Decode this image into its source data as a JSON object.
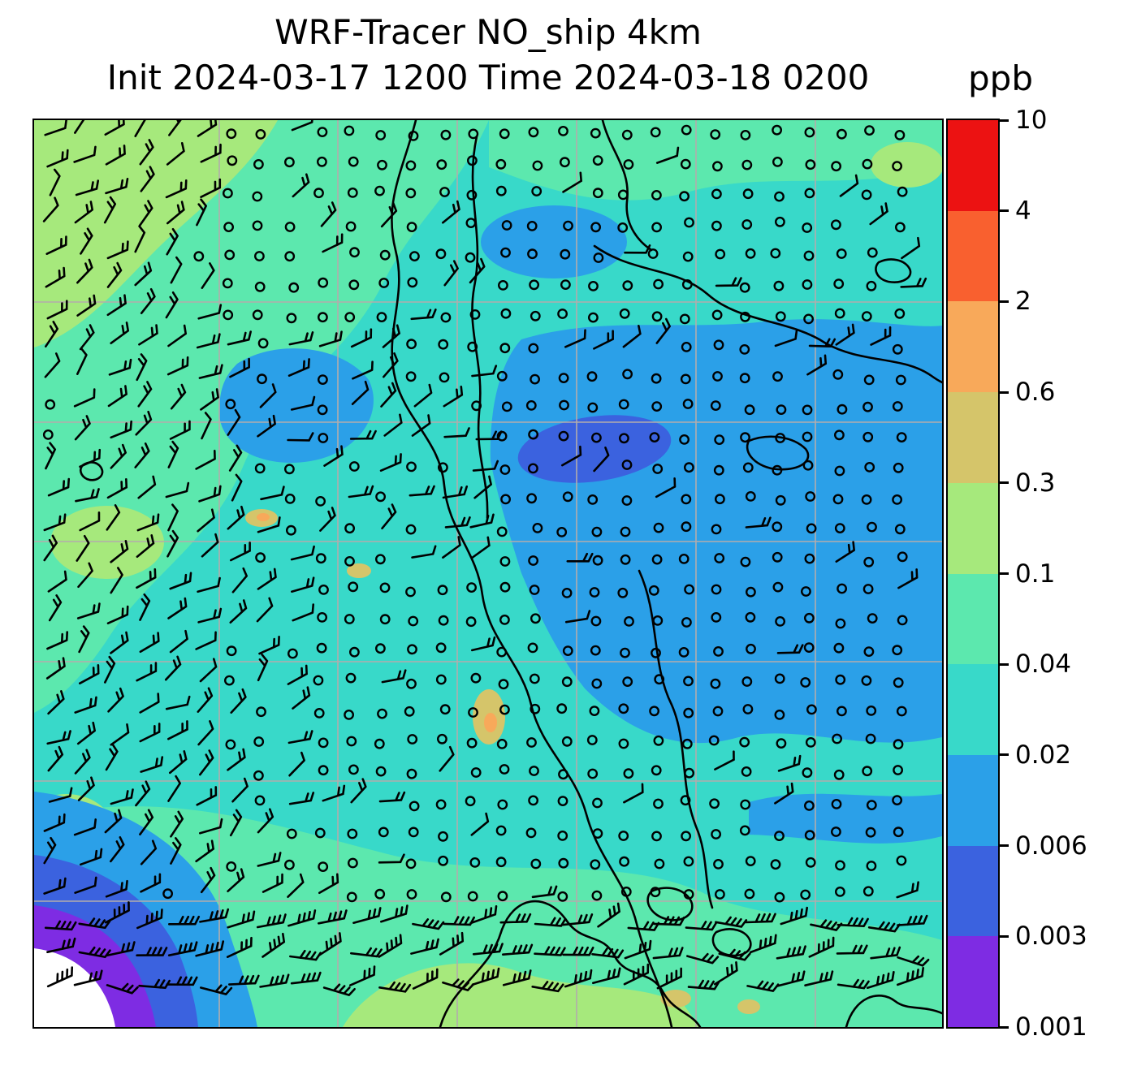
{
  "figure": {
    "title": "WRF-Tracer NO_ship 4km",
    "subtitle": "Init 2024-03-17 1200 Time 2024-03-18 0200",
    "units_label": "ppb"
  },
  "style": {
    "background": "#ffffff",
    "grid_color": "#b3acac",
    "coast_color": "#000000",
    "barb_color": "#000000"
  },
  "chart_data": {
    "type": "heatmap",
    "title": "WRF-Tracer NO_ship 4km",
    "variable": "NO_ship tracer concentration",
    "model": "WRF-Tracer",
    "resolution": "4km",
    "init_time": "2024-03-17 1200",
    "valid_time": "2024-03-18 0200",
    "units": "ppb",
    "colorbar": {
      "orientation": "vertical",
      "position": "right",
      "scale": "discrete non-linear (log-like)",
      "under_color": "#ffffff",
      "ticks": [
        0.001,
        0.003,
        0.006,
        0.02,
        0.04,
        0.1,
        0.3,
        0.6,
        2,
        4,
        10
      ],
      "tick_labels": [
        "0.001",
        "0.003",
        "0.006",
        "0.02",
        "0.04",
        "0.1",
        "0.3",
        "0.6",
        "2",
        "4",
        "10"
      ],
      "colors": [
        "#7e2ce3",
        "#3b62df",
        "#2ba0e8",
        "#38d9c9",
        "#5ce8ae",
        "#a6e97c",
        "#d5c56a",
        "#f8a95a",
        "#f9602f",
        "#ec1212"
      ]
    },
    "overlays": [
      {
        "name": "wind-barbs",
        "style": "black wind barbs; calm stations drawn as small open circles"
      },
      {
        "name": "coastlines",
        "style": "black solid lines"
      },
      {
        "name": "lat-lon-grid",
        "style": "gray straight grid lines"
      }
    ],
    "field_summary": "Field mostly 0.02-0.1 ppb (teal/green); 0.006-0.02 ppb (blue) over open water center-right with a 0.003-0.006 ppb (royal blue) patch; values fall below 0.001 ppb (white with violet 0.001-0.003 fringe) in the far southwest corner; isolated 0.3-2 ppb (khaki/orange) spots along ship tracks."
  }
}
